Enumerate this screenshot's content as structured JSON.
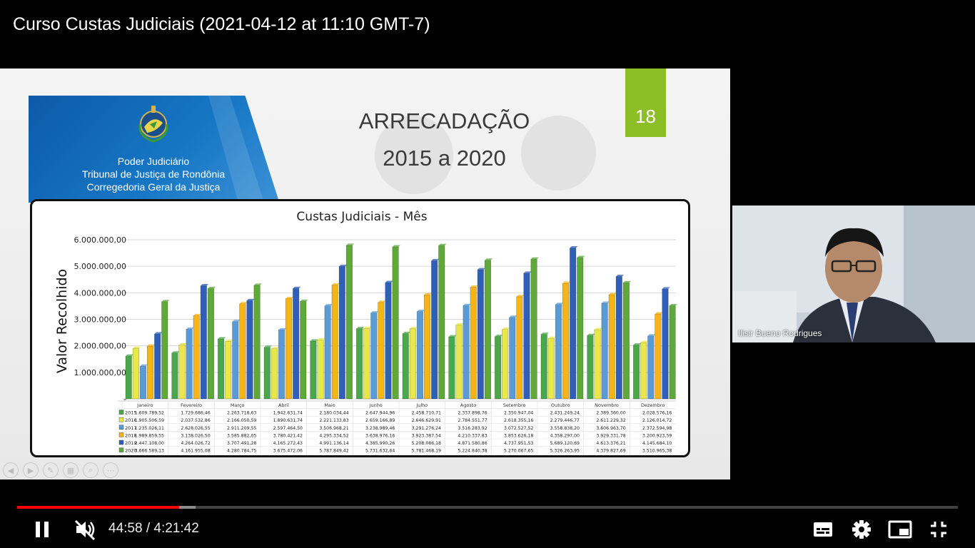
{
  "video": {
    "title": "Curso Custas Judiciais (2021-04-12 at 11:10 GMT-7)",
    "time_current": "44:58",
    "time_separator": " / ",
    "time_total": "4:21:42",
    "progress_fraction": 0.172,
    "buffered_fraction": 0.19
  },
  "slide": {
    "court_lines": [
      "Poder Judiciário",
      "Tribunal de Justiça de Rondônia",
      "Corregedoria Geral da Justiça"
    ],
    "heading_line1": "ARRECADAÇÃO",
    "heading_line2": "2015 a 2020",
    "number": "18"
  },
  "camera": {
    "participant_name": "Ilisir Bueno Rodrigues"
  },
  "colors": {
    "accent_green": "#8cbf26",
    "progress_red": "#ff0000",
    "header_blue": "#0d5aa7"
  },
  "icons": {
    "play_pause": "pause-icon",
    "volume": "volume-muted-icon",
    "captions": "subtitles-icon",
    "settings": "gear-icon",
    "miniplayer": "miniplayer-icon",
    "fullscreen": "exit-fullscreen-icon"
  },
  "chart_data": {
    "type": "bar",
    "title": "Custas Judiciais - Mês",
    "xlabel": "",
    "ylabel": "Valor Recolhido",
    "ylim": [
      0,
      6000000
    ],
    "yticks": [
      "6.000.000,00",
      "5.000.000,00",
      "4.000.000,00",
      "3.000.000,00",
      "2.000.000,00",
      "1.000.000,00",
      "-"
    ],
    "categories": [
      "Janeiro",
      "Fevereiro",
      "Março",
      "Abril",
      "Maio",
      "Junho",
      "Julho",
      "Agosto",
      "Setembro",
      "Outubro",
      "Novembro",
      "Dezembro"
    ],
    "series": [
      {
        "name": "2015",
        "color": "#4aa84a",
        "values": [
          1609789.52,
          1729686.46,
          2263718.63,
          1942631.74,
          2180034.44,
          2647944.96,
          2458710.71,
          2337898.76,
          2350947.04,
          2431249.24,
          2389360.0,
          2028576.16
        ],
        "labels": [
          "1.609.789,52",
          "1.729.686,46",
          "2.263.718,63",
          "1.942.631,74",
          "2.180.034,44",
          "2.647.944,96",
          "2.458.710,71",
          "2.337.898,76",
          "2.350.947,04",
          "2.431.249,24",
          "2.389.360,00",
          "2.028.576,16"
        ]
      },
      {
        "name": "2016",
        "color": "#e8e84a",
        "values": [
          1905506.59,
          2037532.86,
          2166050.59,
          1890631.74,
          2221133.83,
          2659166.89,
          2646629.91,
          2784551.77,
          2618355.16,
          2279446.77,
          2611229.32,
          2126014.72
        ],
        "labels": [
          "1.905.506,59",
          "2.037.532,86",
          "2.166.050,59",
          "1.890.631,74",
          "2.221.133,83",
          "2.659.166,89",
          "2.646.629,91",
          "2.784.551,77",
          "2.618.355,16",
          "2.279.446,77",
          "2.611.229,32",
          "2.126.014,72"
        ]
      },
      {
        "name": "2017",
        "color": "#5b9bd5",
        "values": [
          1235026.11,
          2628026.55,
          2911209.55,
          2597464.5,
          3506968.21,
          3238989.46,
          3291276.24,
          3516283.92,
          3072527.52,
          3558838.2,
          3606963.7,
          2372594.98
        ],
        "labels": [
          "1.235.026,11",
          "2.628.026,55",
          "2.911.209,55",
          "2.597.464,50",
          "3.506.968,21",
          "3.238.989,46",
          "3.291.276,24",
          "3.516.283,92",
          "3.072.527,52",
          "3.558.838,20",
          "3.606.963,70",
          "2.372.594,98"
        ]
      },
      {
        "name": "2018",
        "color": "#f5b417",
        "values": [
          1989859.55,
          3138026.5,
          3585882.05,
          3780421.42,
          4295334.52,
          3638976.16,
          3923387.54,
          4210337.83,
          3853626.18,
          4358297.0,
          3929331.78,
          3200923.59
        ],
        "labels": [
          "1.989.859,55",
          "3.138.026,50",
          "3.585.882,05",
          "3.780.421,42",
          "4.295.334,52",
          "3.638.976,16",
          "3.923.387,54",
          "4.210.337,83",
          "3.853.626,18",
          "4.358.297,00",
          "3.929.331,78",
          "3.200.923,59"
        ]
      },
      {
        "name": "2019",
        "color": "#2f5fb8",
        "values": [
          2447108.0,
          4264026.72,
          3707491.28,
          4165272.43,
          4991136.14,
          4385990.26,
          5208086.18,
          4871580.86,
          4737951.53,
          5689120.69,
          4613376.21,
          4145684.1
        ],
        "labels": [
          "2.447.108,00",
          "4.264.026,72",
          "3.707.491,28",
          "4.165.272,43",
          "4.991.136,14",
          "4.385.990,26",
          "5.208.086,18",
          "4.871.580,86",
          "4.737.951,53",
          "5.689.120,69",
          "4.613.376,21",
          "4.145.684,10"
        ]
      },
      {
        "name": "2020",
        "color": "#5fa83a",
        "values": [
          3666589.13,
          4161955.08,
          4280784.75,
          3675472.06,
          5787849.42,
          5731632.64,
          5781468.19,
          5224840.38,
          5270067.65,
          5326263.95,
          4379827.69,
          3510965.38
        ],
        "labels": [
          "3.666.589,13",
          "4.161.955,08",
          "4.280.784,75",
          "3.675.472,06",
          "5.787.849,42",
          "5.731.632,64",
          "5.781.468,19",
          "5.224.840,38",
          "5.270.067,65",
          "5.326.263,95",
          "4.379.827,69",
          "3.510.965,38"
        ]
      }
    ],
    "legend": "table-below",
    "grid": true
  }
}
